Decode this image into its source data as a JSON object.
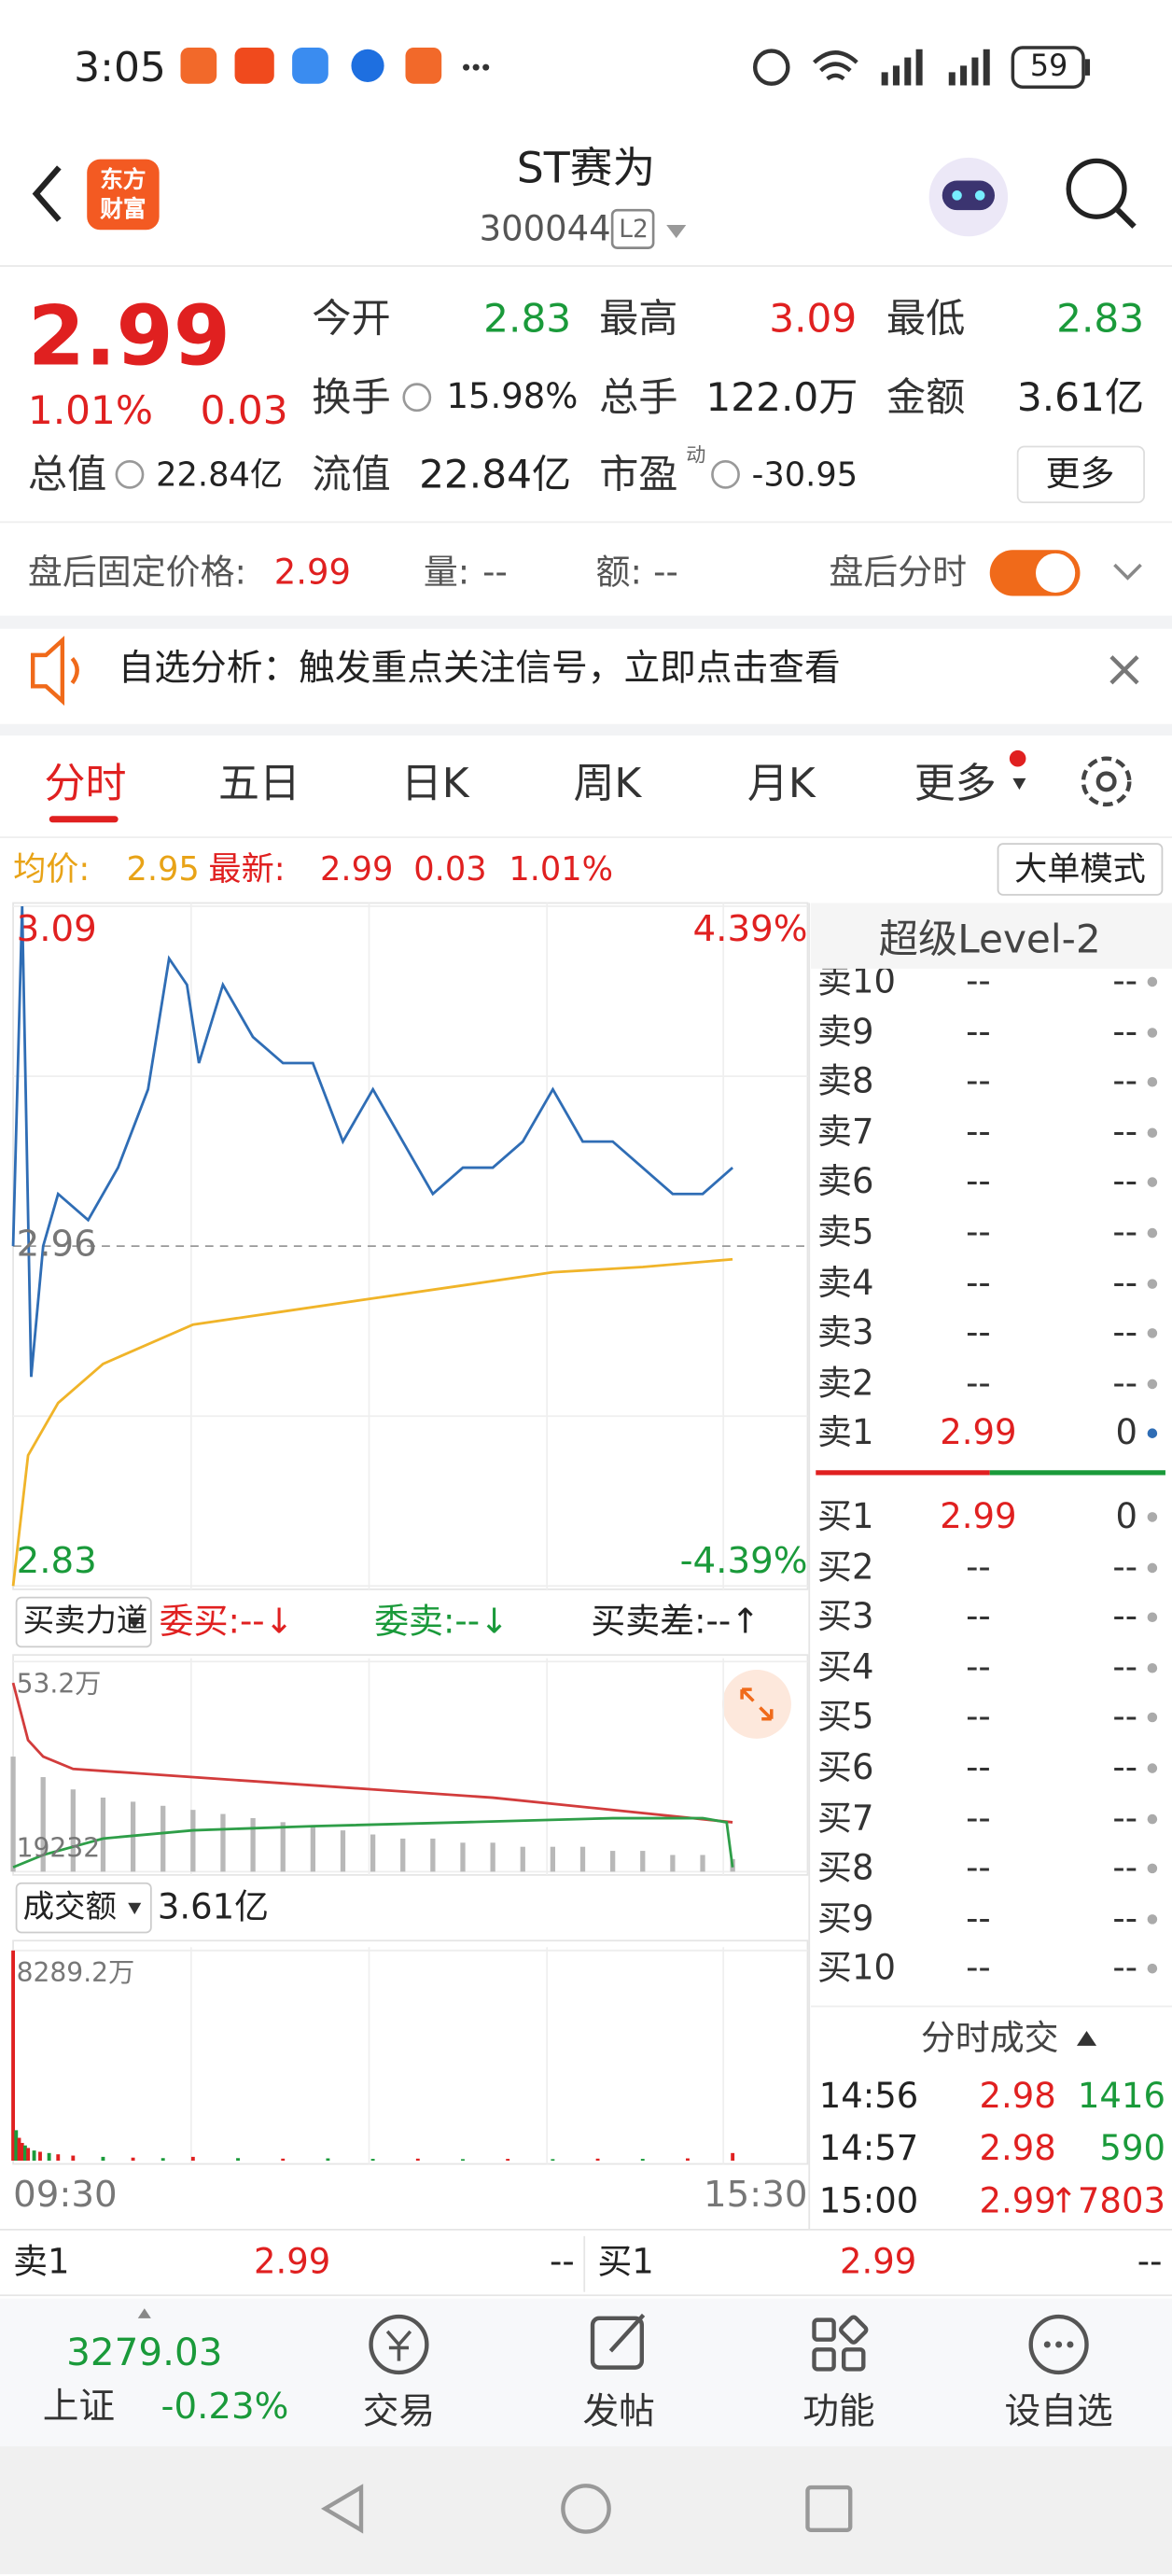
{
  "status_bar": {
    "time": "3:05",
    "battery": "59"
  },
  "header": {
    "logo": [
      "东方",
      "财富"
    ],
    "title": "ST赛为",
    "code": "300044",
    "badge": "L2"
  },
  "quote": {
    "price": "2.99",
    "change_pct": "1.01%",
    "change": "0.03",
    "fields": [
      {
        "label": "今开",
        "value": "2.83"
      },
      {
        "label": "最高",
        "value": "3.09"
      },
      {
        "label": "最低",
        "value": "2.83"
      },
      {
        "label": "换手",
        "value": "15.98%"
      },
      {
        "label": "总手",
        "value": "122.0万"
      },
      {
        "label": "金额",
        "value": "3.61亿"
      },
      {
        "label": "总值",
        "value": "22.84亿"
      },
      {
        "label": "流值",
        "value": "22.84亿"
      },
      {
        "label": "市盈",
        "value": "-30.95",
        "note": "动"
      }
    ],
    "more": "更多"
  },
  "after_hours": {
    "label": "盘后固定价格:",
    "price": "2.99",
    "volume_label": "量:",
    "volume": "--",
    "amount_label": "额:",
    "amount": "--",
    "toggle_label": "盘后分时"
  },
  "notice": "自选分析：触发重点关注信号，立即点击查看",
  "tabs": [
    "分时",
    "五日",
    "日K",
    "周K",
    "月K",
    "更多"
  ],
  "summary": {
    "avg_label": "均价:",
    "avg": "2.95",
    "latest_label": "最新:",
    "latest": "2.99",
    "change": "0.03",
    "change_pct": "1.01%",
    "mode": "大单模式"
  },
  "chart_data": [
    {
      "type": "line",
      "xlim": [
        0,
        265
      ],
      "ylim": [
        2.83,
        3.09
      ],
      "yticks": [
        3.09,
        2.96,
        2.83
      ],
      "y2lim": [
        -4.39,
        4.39
      ],
      "y2ticks": [
        {
          "value": 4.39,
          "label": "4.39%"
        },
        {
          "value": -4.39,
          "label": "-4.39%"
        }
      ],
      "series": [
        {
          "color": "#2f6db5",
          "x": [
            0,
            3,
            6,
            10,
            15,
            25,
            35,
            45,
            52,
            58,
            62,
            70,
            80,
            90,
            100,
            110,
            120,
            130,
            140,
            150,
            160,
            170,
            180,
            190,
            200,
            210,
            220,
            230,
            240
          ],
          "values": [
            2.96,
            3.09,
            2.91,
            2.96,
            2.98,
            2.97,
            2.99,
            3.02,
            3.07,
            3.06,
            3.03,
            3.06,
            3.04,
            3.03,
            3.03,
            3.0,
            3.02,
            3.0,
            2.98,
            2.99,
            2.99,
            3.0,
            3.02,
            3.0,
            3.0,
            2.99,
            2.98,
            2.98,
            2.99
          ]
        },
        {
          "color": "#f0b429",
          "x": [
            0,
            5,
            15,
            30,
            60,
            90,
            120,
            150,
            180,
            210,
            240
          ],
          "values": [
            2.83,
            2.88,
            2.9,
            2.915,
            2.93,
            2.935,
            2.94,
            2.945,
            2.95,
            2.952,
            2.955
          ]
        }
      ]
    },
    {
      "type": "line",
      "xlim": [
        0,
        265
      ],
      "ylim": [
        1.9232,
        53.2
      ],
      "yticks": [
        {
          "value": 53.2,
          "label": "53.2万"
        },
        {
          "value": 1.9232,
          "label": "19232"
        }
      ],
      "series": [
        {
          "type": "bar",
          "color": "#b8b8b8",
          "x": [
            0,
            10,
            20,
            30,
            40,
            50,
            60,
            70,
            80,
            90,
            100,
            110,
            120,
            130,
            140,
            150,
            160,
            170,
            180,
            190,
            200,
            210,
            220,
            230,
            240
          ],
          "values": [
            30,
            25,
            22,
            20,
            19,
            18,
            17,
            16,
            15,
            14,
            13,
            12,
            11,
            10,
            10,
            9,
            9,
            8,
            8,
            8,
            7,
            7,
            6,
            6,
            5
          ]
        },
        {
          "color": "#d23c3c",
          "x": [
            0,
            5,
            10,
            20,
            40,
            80,
            120,
            160,
            200,
            240
          ],
          "values": [
            48,
            34,
            30,
            27,
            26,
            24,
            22,
            20,
            17,
            14
          ]
        },
        {
          "color": "#2e9e48",
          "x": [
            0,
            10,
            30,
            60,
            100,
            150,
            200,
            230,
            238,
            240
          ],
          "values": [
            3,
            6,
            10,
            12,
            13,
            14,
            15,
            15,
            14,
            3
          ]
        }
      ]
    },
    {
      "type": "bar",
      "xlim": [
        0,
        265
      ],
      "ylim": [
        0,
        8289.2
      ],
      "yticks": [
        {
          "value": 8289.2,
          "label": "8289.2万"
        }
      ],
      "xticks": [
        {
          "value": 0,
          "label": "09:30"
        },
        {
          "value": 265,
          "label": "15:30"
        }
      ],
      "x": [
        0,
        1,
        2,
        3,
        4,
        5,
        7,
        9,
        12,
        15,
        20,
        30,
        40,
        50,
        60,
        75,
        90,
        105,
        120,
        135,
        150,
        165,
        180,
        195,
        210,
        225,
        240
      ],
      "values": [
        8289.2,
        1200,
        900,
        700,
        600,
        500,
        400,
        350,
        300,
        250,
        200,
        150,
        120,
        100,
        150,
        100,
        80,
        90,
        70,
        80,
        60,
        70,
        60,
        80,
        70,
        90,
        300
      ],
      "colors": [
        "#e02020",
        "#1a9a3a",
        "#e02020",
        "#e02020",
        "#1a9a3a",
        "#e02020",
        "#1a9a3a",
        "#e02020",
        "#1a9a3a",
        "#e02020",
        "#e02020",
        "#1a9a3a",
        "#e02020",
        "#1a9a3a",
        "#e02020",
        "#1a9a3a",
        "#e02020",
        "#1a9a3a",
        "#1a9a3a",
        "#e02020",
        "#1a9a3a",
        "#e02020",
        "#1a9a3a",
        "#e02020",
        "#1a9a3a",
        "#e02020",
        "#e02020"
      ]
    }
  ],
  "force_bar": {
    "selector": "买卖力道",
    "bid": "委买:--↓",
    "ask": "委卖:--↓",
    "diff": "买卖差:--↑"
  },
  "amount_bar": {
    "selector": "成交额",
    "value": "3.61亿"
  },
  "order_book": {
    "title": "超级Level-2",
    "asks": [
      {
        "label": "卖10",
        "price": "--",
        "volume": "--"
      },
      {
        "label": "卖9",
        "price": "--",
        "volume": "--"
      },
      {
        "label": "卖8",
        "price": "--",
        "volume": "--"
      },
      {
        "label": "卖7",
        "price": "--",
        "volume": "--"
      },
      {
        "label": "卖6",
        "price": "--",
        "volume": "--"
      },
      {
        "label": "卖5",
        "price": "--",
        "volume": "--"
      },
      {
        "label": "卖4",
        "price": "--",
        "volume": "--"
      },
      {
        "label": "卖3",
        "price": "--",
        "volume": "--"
      },
      {
        "label": "卖2",
        "price": "--",
        "volume": "--"
      },
      {
        "label": "卖1",
        "price": "2.99",
        "volume": "0"
      }
    ],
    "bids": [
      {
        "label": "买1",
        "price": "2.99",
        "volume": "0"
      },
      {
        "label": "买2",
        "price": "--",
        "volume": "--"
      },
      {
        "label": "买3",
        "price": "--",
        "volume": "--"
      },
      {
        "label": "买4",
        "price": "--",
        "volume": "--"
      },
      {
        "label": "买5",
        "price": "--",
        "volume": "--"
      },
      {
        "label": "买6",
        "price": "--",
        "volume": "--"
      },
      {
        "label": "买7",
        "price": "--",
        "volume": "--"
      },
      {
        "label": "买8",
        "price": "--",
        "volume": "--"
      },
      {
        "label": "买9",
        "price": "--",
        "volume": "--"
      },
      {
        "label": "买10",
        "price": "--",
        "volume": "--"
      }
    ]
  },
  "trades": {
    "title": "分时成交",
    "rows": [
      {
        "time": "14:56",
        "price": "2.98",
        "volume": "1416"
      },
      {
        "time": "14:57",
        "price": "2.98",
        "volume": "590"
      },
      {
        "time": "15:00",
        "price": "2.99",
        "flag": "↑",
        "volume": "7803"
      }
    ]
  },
  "bottom_quote": {
    "ask": {
      "label": "卖1",
      "price": "2.99",
      "volume": "--"
    },
    "bid": {
      "label": "买1",
      "price": "2.99",
      "volume": "--"
    }
  },
  "nav": {
    "index": {
      "value": "3279.03",
      "name": "上证",
      "change": "-0.23%"
    },
    "items": [
      "交易",
      "发帖",
      "功能",
      "设自选"
    ]
  }
}
